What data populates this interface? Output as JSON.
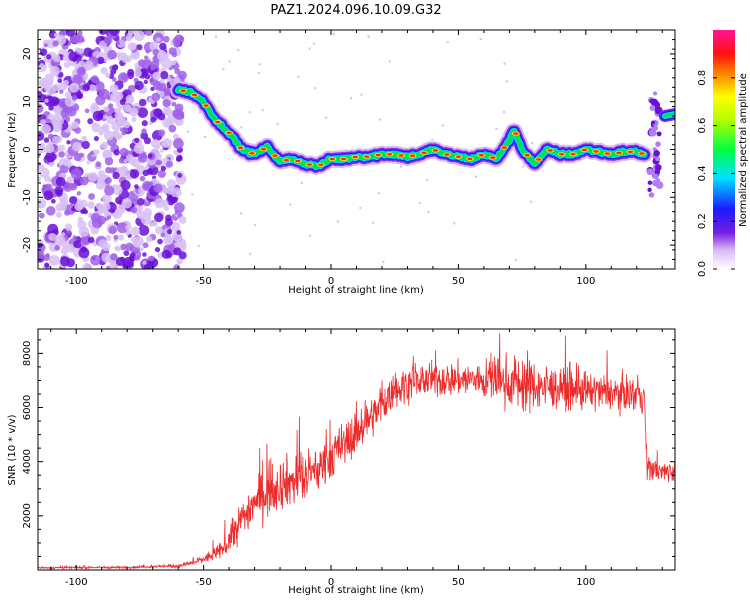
{
  "title": "PAZ1.2024.096.10.09.G32",
  "colors": {
    "snr_line": "#ee2b2b",
    "background": "#ffffff",
    "axes": "#000000"
  },
  "chart_data": [
    {
      "type": "heatmap",
      "title": "PAZ1.2024.096.10.09.G32",
      "xlabel": "Height of straight line (km)",
      "ylabel": "Frequency (Hz)",
      "xlim": [
        -115,
        135
      ],
      "ylim": [
        -25,
        25
      ],
      "x_ticks": [
        -100,
        -50,
        0,
        50,
        100
      ],
      "y_ticks": [
        -20,
        -10,
        0,
        10,
        20
      ],
      "colorbar": {
        "label": "Normalized spectral amplitude",
        "range": [
          0,
          1
        ],
        "ticks": [
          0.0,
          0.2,
          0.4,
          0.6,
          0.8
        ],
        "colormap": "rainbow (purple → blue → cyan → green → yellow → red → pink)"
      },
      "ridge": {
        "x": [
          -60,
          -55,
          -50,
          -45,
          -40,
          -35,
          -30,
          -25,
          -20,
          -15,
          -10,
          -5,
          0,
          5,
          10,
          15,
          20,
          25,
          30,
          35,
          40,
          45,
          50,
          55,
          60,
          65,
          70,
          72,
          75,
          80,
          85,
          90,
          95,
          100,
          105,
          110,
          115,
          120,
          123
        ],
        "frequency_hz": [
          12.5,
          12,
          10,
          6,
          3.5,
          0,
          -1,
          0.5,
          -2.5,
          -2,
          -3,
          -3.5,
          -2,
          -2,
          -1.5,
          -1.5,
          -1,
          -1,
          -1.5,
          -1,
          0,
          -1,
          -1.5,
          -2,
          -1,
          -2,
          2,
          4,
          0,
          -3,
          0,
          -1,
          -1,
          0,
          -0.5,
          -1,
          -0.5,
          -0.5,
          -1
        ]
      },
      "noise_region_x": [
        -115,
        -58
      ],
      "late_signal_x": [
        125,
        135
      ],
      "late_signal_frequency_hz": [
        6,
        8
      ]
    },
    {
      "type": "line",
      "xlabel": "Height of straight line (km)",
      "ylabel": "SNR (10 * v/v)",
      "xlim": [
        -115,
        135
      ],
      "ylim": [
        0,
        8900
      ],
      "x_ticks": [
        -100,
        -50,
        0,
        50,
        100
      ],
      "y_ticks": [
        2000,
        4000,
        6000,
        8000
      ],
      "series": [
        {
          "x": [
            -115,
            -100,
            -80,
            -60,
            -55,
            -50,
            -45,
            -40,
            -35,
            -30,
            -25,
            -20,
            -15,
            -10,
            -5,
            0,
            5,
            10,
            15,
            20,
            25,
            30,
            35,
            40,
            50,
            60,
            70,
            75,
            80,
            90,
            100,
            110,
            120,
            123,
            124,
            130,
            135
          ],
          "values": [
            80,
            90,
            100,
            150,
            250,
            400,
            600,
            1000,
            1900,
            2500,
            2900,
            3200,
            3300,
            3400,
            3700,
            4200,
            4600,
            5100,
            5600,
            6100,
            6600,
            6900,
            7000,
            7000,
            7050,
            7000,
            6950,
            6900,
            6800,
            6700,
            6600,
            6550,
            6500,
            6400,
            3800,
            3600,
            3700
          ],
          "noise_amplitude": [
            40,
            40,
            40,
            60,
            100,
            150,
            250,
            400,
            700,
            800,
            900,
            900,
            900,
            900,
            800,
            800,
            800,
            800,
            700,
            700,
            600,
            600,
            600,
            600,
            600,
            700,
            900,
            1100,
            900,
            700,
            700,
            600,
            600,
            600,
            400,
            400,
            400
          ]
        }
      ]
    }
  ]
}
